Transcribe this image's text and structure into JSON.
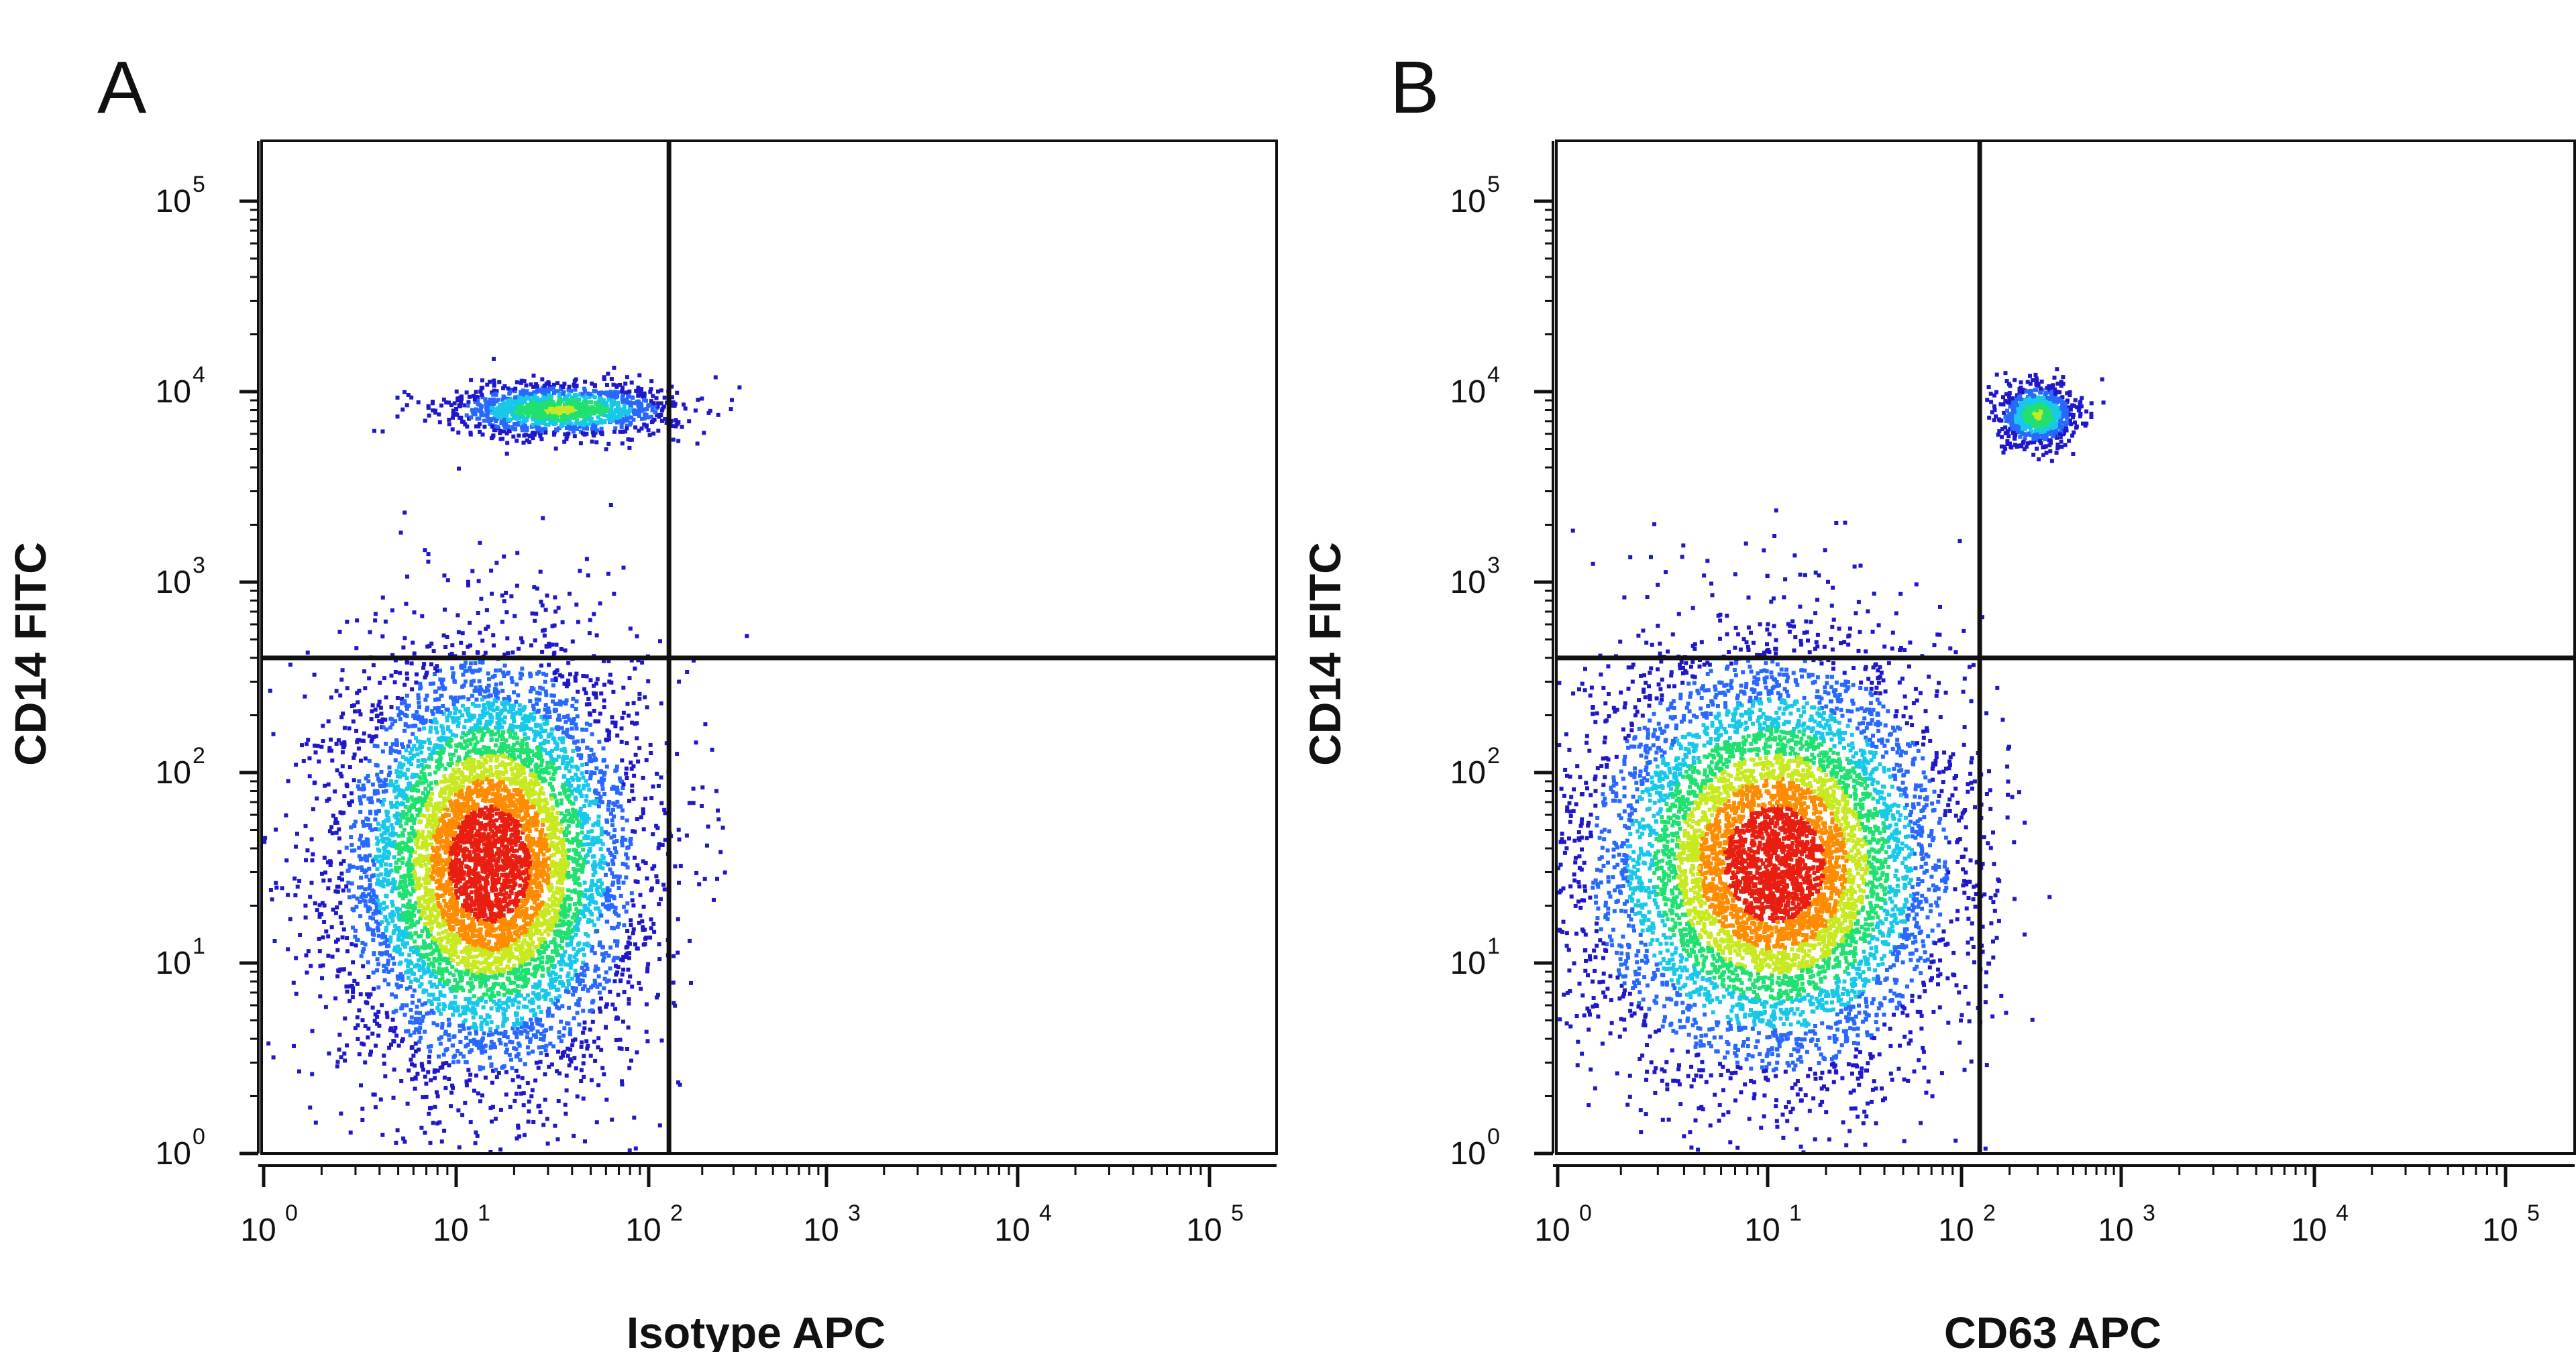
{
  "figure": {
    "panel_letters": [
      "A",
      "B"
    ]
  },
  "chart_data": [
    {
      "type": "scatter",
      "panel": "A",
      "title": "",
      "xlabel": "Isotype APC",
      "ylabel": "CD14 FITC",
      "x_scale": "log",
      "y_scale": "log",
      "xlim": [
        1,
        100000
      ],
      "ylim": [
        1,
        100000
      ],
      "x_ticks": [
        1,
        10,
        100,
        1000,
        10000,
        100000
      ],
      "y_ticks": [
        1,
        10,
        100,
        1000,
        10000,
        100000
      ],
      "tick_base": "10",
      "tick_exponents": [
        "0",
        "1",
        "2",
        "3",
        "4",
        "5"
      ],
      "grid": false,
      "quadrant_gate": {
        "x": 130,
        "y": 400
      },
      "colormap": [
        "#1e18c8",
        "#2868ff",
        "#18c8e8",
        "#20e070",
        "#c8e820",
        "#ff8c00",
        "#e81e10"
      ],
      "populations": [
        {
          "name_visible": false,
          "center": [
            15,
            33
          ],
          "spread_decades": [
            0.38,
            0.55
          ],
          "relative_density": 1.0
        },
        {
          "name_visible": false,
          "center": [
            35,
            8000
          ],
          "spread_decades": [
            0.3,
            0.07
          ],
          "relative_density": 0.18
        }
      ]
    },
    {
      "type": "scatter",
      "panel": "B",
      "title": "",
      "xlabel": "CD63 APC",
      "ylabel": "CD14 FITC",
      "x_scale": "log",
      "y_scale": "log",
      "xlim": [
        1,
        100000
      ],
      "ylim": [
        1,
        100000
      ],
      "x_ticks": [
        1,
        10,
        100,
        1000,
        10000,
        100000
      ],
      "y_ticks": [
        1,
        10,
        100,
        1000,
        10000,
        100000
      ],
      "tick_base": "10",
      "tick_exponents": [
        "0",
        "1",
        "2",
        "3",
        "4",
        "5"
      ],
      "grid": false,
      "quadrant_gate": {
        "x": 130,
        "y": 400
      },
      "colormap": [
        "#1e18c8",
        "#2868ff",
        "#18c8e8",
        "#20e070",
        "#c8e820",
        "#ff8c00",
        "#e81e10"
      ],
      "populations": [
        {
          "name_visible": false,
          "center": [
            11,
            33
          ],
          "spread_decades": [
            0.45,
            0.55
          ],
          "relative_density": 1.0
        },
        {
          "name_visible": false,
          "center": [
            300,
            7500
          ],
          "spread_decades": [
            0.12,
            0.08
          ],
          "relative_density": 0.12
        }
      ]
    }
  ]
}
